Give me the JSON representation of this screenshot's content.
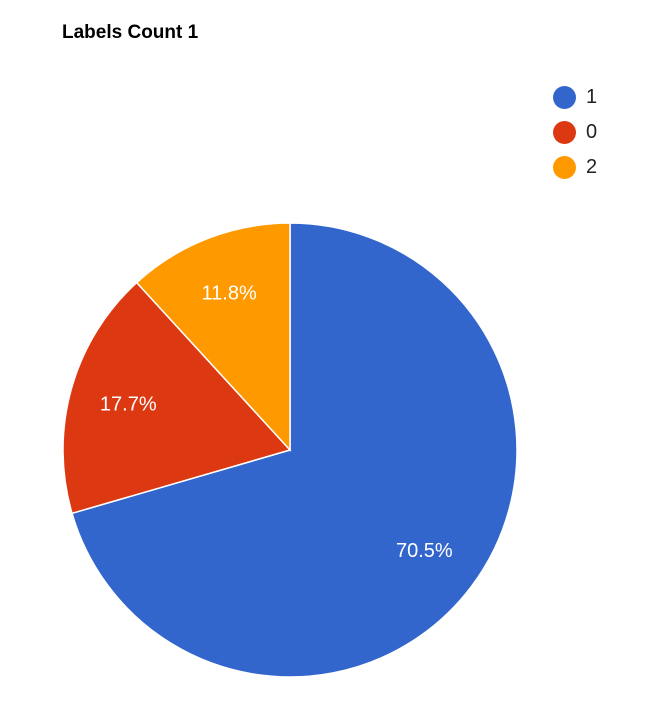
{
  "chart_data": {
    "type": "pie",
    "title": "Labels Count 1",
    "legend_position": "top-right",
    "slices": [
      {
        "label": "1",
        "percent": 70.5,
        "percent_label": "70.5%",
        "color": "#3366cc"
      },
      {
        "label": "0",
        "percent": 17.7,
        "percent_label": "17.7%",
        "color": "#dc3912"
      },
      {
        "label": "2",
        "percent": 11.8,
        "percent_label": "11.8%",
        "color": "#ff9900"
      }
    ]
  }
}
